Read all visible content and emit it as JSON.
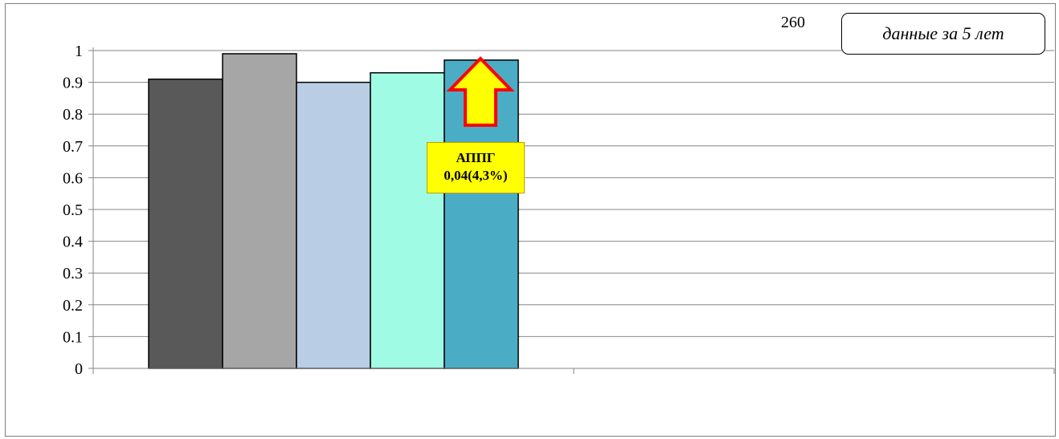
{
  "page_number": "260",
  "period_note": "данные за 5 лет",
  "growth_badge": {
    "line1": "АППГ",
    "line2": "0,04(4,3%)",
    "arrow_color": "#ff0000",
    "fill_color": "#ffff00"
  },
  "chart_data": {
    "type": "bar",
    "title": "",
    "xlabel": "",
    "ylabel": "",
    "ylim": [
      0,
      1
    ],
    "yticks": [
      "0",
      "0.1",
      "0.2",
      "0.3",
      "0.4",
      "0.5",
      "0.6",
      "0.7",
      "0.8",
      "0.9",
      "1"
    ],
    "grid": true,
    "series": [
      {
        "values": [
          0.91
        ],
        "color": "#595959"
      },
      {
        "values": [
          0.99
        ],
        "color": "#a6a6a6"
      },
      {
        "values": [
          0.9
        ],
        "color": "#b9cde5"
      },
      {
        "values": [
          0.93
        ],
        "color": "#a0fbe5"
      },
      {
        "values": [
          0.97
        ],
        "color": "#4bacc6"
      }
    ]
  }
}
